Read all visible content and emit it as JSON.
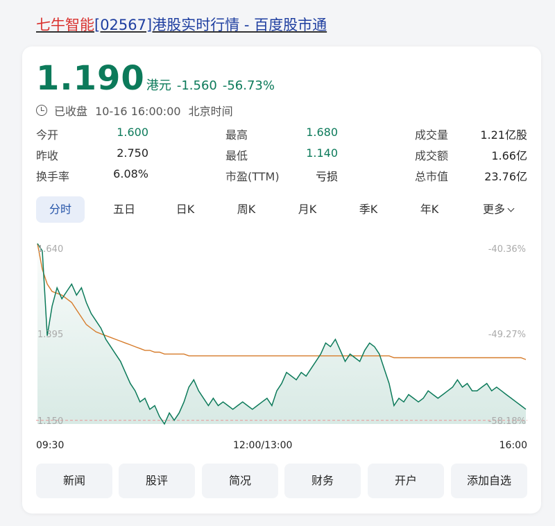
{
  "page": {
    "company": "七牛智能",
    "code_title": "[02567]港股实时行情 - 百度股市通"
  },
  "quote": {
    "price": "1.190",
    "currency": "港元",
    "change": "-1.560",
    "change_pct": "-56.73%",
    "status": "已收盘",
    "time": "10-16 16:00:00",
    "timezone": "北京时间",
    "color_down": "#0c7a5a"
  },
  "stats": {
    "open_label": "今开",
    "open_value": "1.600",
    "high_label": "最高",
    "high_value": "1.680",
    "volume_label": "成交量",
    "volume_value": "1.21亿股",
    "prev_close_label": "昨收",
    "prev_close_value": "2.750",
    "low_label": "最低",
    "low_value": "1.140",
    "turnover_label": "成交额",
    "turnover_value": "1.66亿",
    "turnover_rate_label": "换手率",
    "turnover_rate_value": "6.08%",
    "pe_label": "市盈(TTM)",
    "pe_value": "亏损",
    "market_cap_label": "总市值",
    "market_cap_value": "23.76亿"
  },
  "tabs": {
    "intraday": "分时",
    "five_day": "五日",
    "daily_k": "日K",
    "weekly_k": "周K",
    "monthly_k": "月K",
    "quarterly_k": "季K",
    "yearly_k": "年K",
    "more": "更多"
  },
  "chart_data": {
    "type": "line",
    "series": [
      {
        "values": [
          1.64,
          1.62,
          1.39,
          1.47,
          1.52,
          1.49,
          1.51,
          1.53,
          1.5,
          1.52,
          1.48,
          1.45,
          1.43,
          1.41,
          1.38,
          1.36,
          1.34,
          1.32,
          1.29,
          1.26,
          1.24,
          1.21,
          1.22,
          1.19,
          1.2,
          1.17,
          1.15,
          1.18,
          1.16,
          1.18,
          1.21,
          1.25,
          1.27,
          1.24,
          1.22,
          1.2,
          1.22,
          1.2,
          1.21,
          1.2,
          1.19,
          1.2,
          1.21,
          1.2,
          1.19,
          1.2,
          1.21,
          1.22,
          1.2,
          1.24,
          1.26,
          1.29,
          1.28,
          1.27,
          1.29,
          1.28,
          1.3,
          1.32,
          1.34,
          1.37,
          1.36,
          1.38,
          1.35,
          1.32,
          1.34,
          1.33,
          1.32,
          1.35,
          1.37,
          1.36,
          1.34,
          1.3,
          1.26,
          1.2,
          1.22,
          1.21,
          1.23,
          1.22,
          1.21,
          1.22,
          1.24,
          1.23,
          1.22,
          1.23,
          1.24,
          1.25,
          1.27,
          1.25,
          1.26,
          1.24,
          1.24,
          1.25,
          1.26,
          1.24,
          1.25,
          1.24,
          1.23,
          1.22,
          1.21,
          1.2,
          1.19
        ]
      },
      {
        "values": [
          1.64,
          1.57,
          1.53,
          1.51,
          1.505,
          1.5,
          1.49,
          1.48,
          1.46,
          1.44,
          1.42,
          1.41,
          1.4,
          1.395,
          1.39,
          1.385,
          1.38,
          1.375,
          1.37,
          1.365,
          1.36,
          1.355,
          1.35,
          1.35,
          1.345,
          1.345,
          1.34,
          1.34,
          1.34,
          1.34,
          1.34,
          1.335,
          1.335,
          1.335,
          1.335,
          1.335,
          1.335,
          1.335,
          1.335,
          1.335,
          1.335,
          1.335,
          1.335,
          1.335,
          1.335,
          1.335,
          1.335,
          1.335,
          1.335,
          1.335,
          1.335,
          1.335,
          1.335,
          1.335,
          1.335,
          1.335,
          1.335,
          1.335,
          1.335,
          1.335,
          1.335,
          1.335,
          1.335,
          1.335,
          1.335,
          1.335,
          1.335,
          1.335,
          1.335,
          1.335,
          1.335,
          1.335,
          1.335,
          1.33,
          1.33,
          1.33,
          1.33,
          1.33,
          1.33,
          1.33,
          1.33,
          1.33,
          1.33,
          1.33,
          1.33,
          1.33,
          1.33,
          1.33,
          1.33,
          1.33,
          1.33,
          1.33,
          1.33,
          1.33,
          1.33,
          1.33,
          1.33,
          1.33,
          1.33,
          1.33,
          1.325
        ]
      }
    ],
    "y_ticks": [
      "1.640",
      "1.395",
      "1.150"
    ],
    "pct_ticks": [
      "-40.36%",
      "-49.27%",
      "-58.18%"
    ],
    "ylim": [
      1.15,
      1.64
    ],
    "ref_line": 1.16,
    "x_labels": [
      "09:30",
      "12:00/13:00",
      "16:00"
    ],
    "colors": {
      "price": "#0c7a5a",
      "avg": "#d67b2a",
      "ref": "#e8a0a0"
    }
  },
  "actions": {
    "news": "新闻",
    "comments": "股评",
    "profile": "简况",
    "finance": "财务",
    "open_account": "开户",
    "add_watchlist": "添加自选"
  }
}
